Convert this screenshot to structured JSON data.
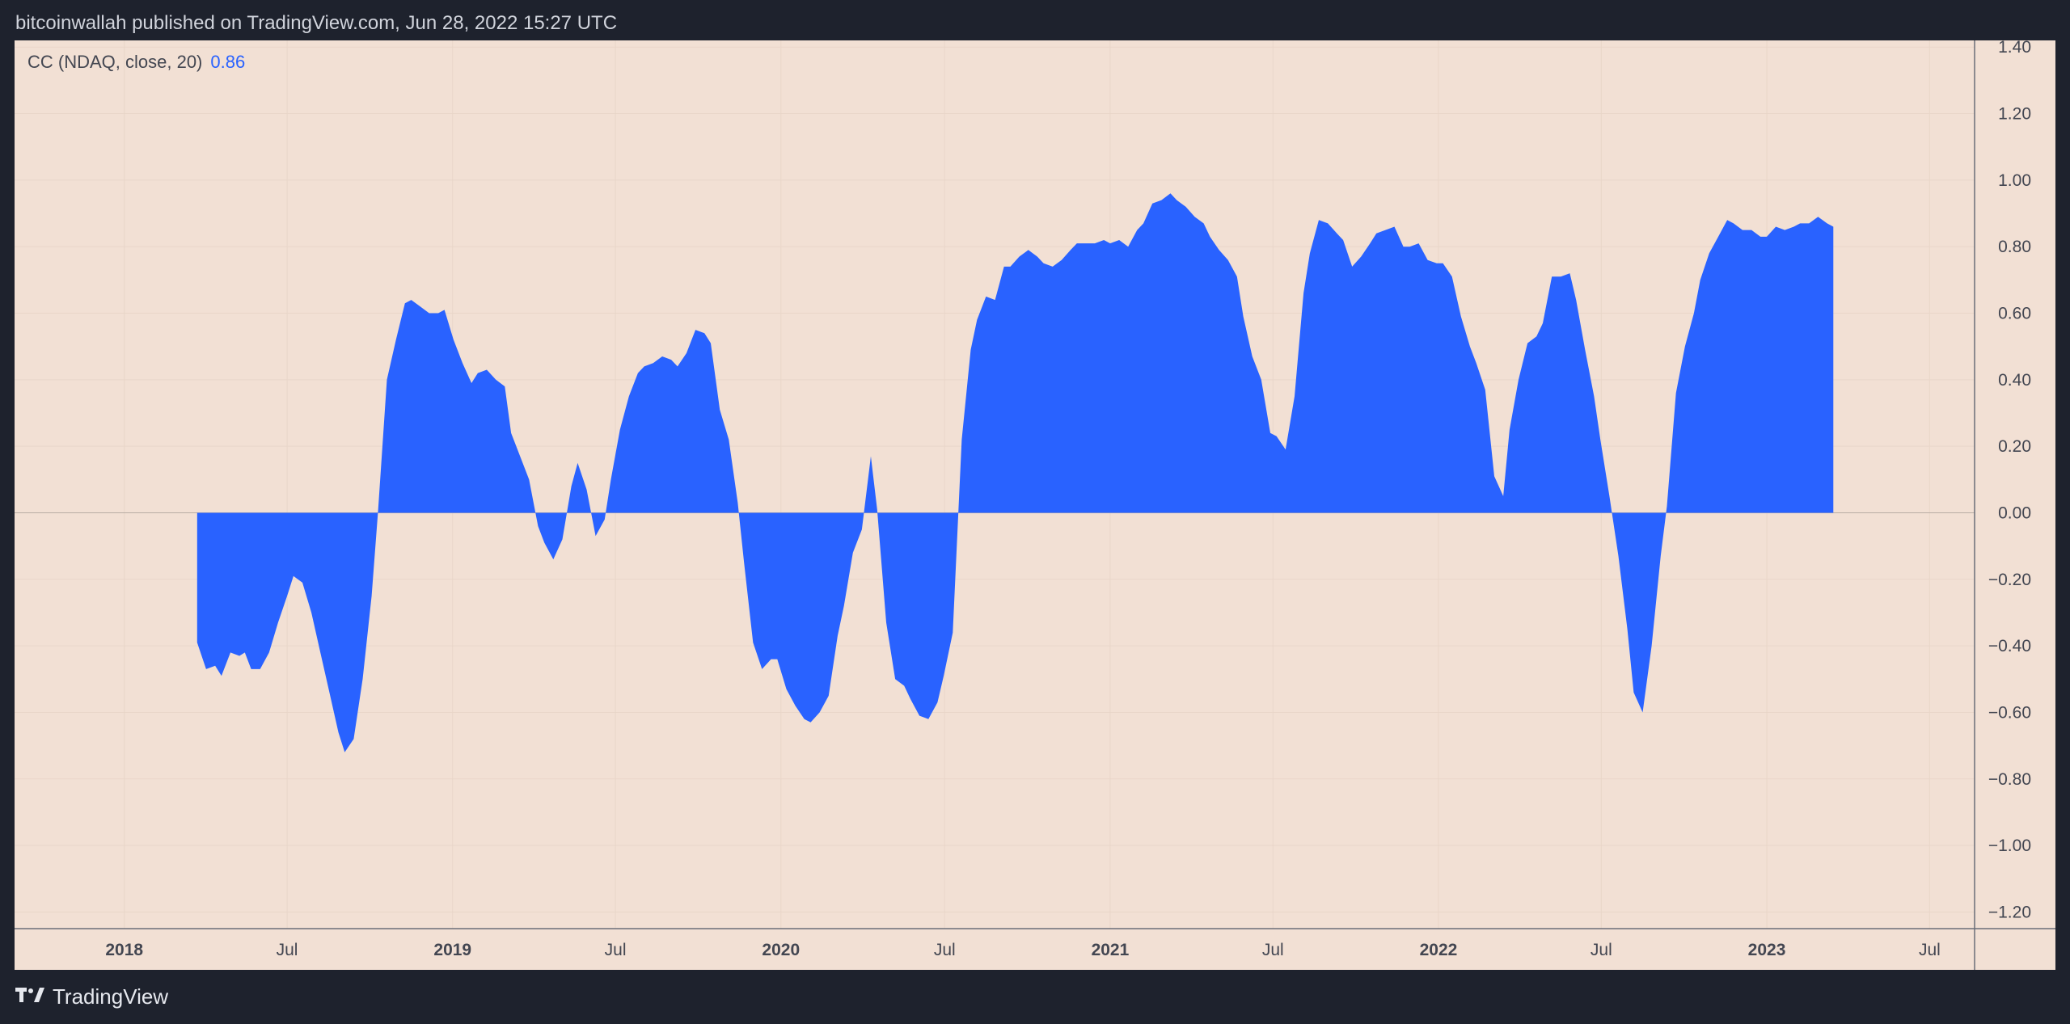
{
  "header": {
    "published": "bitcoinwallah published on TradingView.com, Jun 28, 2022 15:27 UTC"
  },
  "legend": {
    "label": "CC (NDAQ, close, 20)",
    "value": "0.86"
  },
  "footer": {
    "brand": "TradingView",
    "logo_icon": "tradingview-logo-icon"
  },
  "colors": {
    "series": "#2962ff",
    "background": "#f2e0d4",
    "frame": "#1e222d",
    "axis_text": "#434651"
  },
  "chart_data": {
    "type": "area",
    "title": "",
    "xlabel": "",
    "ylabel": "",
    "grid": true,
    "ylim": [
      -1.25,
      1.42
    ],
    "xlim": [
      "2017-09-01",
      "2023-08-20"
    ],
    "y_ticks": [
      "1.40",
      "1.20",
      "1.00",
      "0.80",
      "0.60",
      "0.40",
      "0.20",
      "0.00",
      "−0.20",
      "−0.40",
      "−0.60",
      "−0.80",
      "−1.00",
      "−1.20"
    ],
    "x_ticks": [
      {
        "label": "2018",
        "date": "2018-01-01",
        "bold": true
      },
      {
        "label": "Jul",
        "date": "2018-07-01",
        "bold": false
      },
      {
        "label": "2019",
        "date": "2019-01-01",
        "bold": true
      },
      {
        "label": "Jul",
        "date": "2019-07-01",
        "bold": false
      },
      {
        "label": "2020",
        "date": "2020-01-01",
        "bold": true
      },
      {
        "label": "Jul",
        "date": "2020-07-01",
        "bold": false
      },
      {
        "label": "2021",
        "date": "2021-01-01",
        "bold": true
      },
      {
        "label": "Jul",
        "date": "2021-07-01",
        "bold": false
      },
      {
        "label": "2022",
        "date": "2022-01-01",
        "bold": true
      },
      {
        "label": "Jul",
        "date": "2022-07-01",
        "bold": false
      },
      {
        "label": "2023",
        "date": "2023-01-01",
        "bold": true
      },
      {
        "label": "Jul",
        "date": "2023-07-01",
        "bold": false
      }
    ],
    "series": [
      {
        "points": [
          [
            "2018-03-23",
            -0.39
          ],
          [
            "2018-04-02",
            -0.47
          ],
          [
            "2018-04-12",
            -0.46
          ],
          [
            "2018-04-19",
            -0.49
          ],
          [
            "2018-04-29",
            -0.42
          ],
          [
            "2018-05-09",
            -0.43
          ],
          [
            "2018-05-15",
            -0.42
          ],
          [
            "2018-05-22",
            -0.47
          ],
          [
            "2018-06-01",
            -0.47
          ],
          [
            "2018-06-11",
            -0.42
          ],
          [
            "2018-06-21",
            -0.33
          ],
          [
            "2018-07-01",
            -0.25
          ],
          [
            "2018-07-08",
            -0.19
          ],
          [
            "2018-07-18",
            -0.21
          ],
          [
            "2018-07-28",
            -0.3
          ],
          [
            "2018-08-07",
            -0.42
          ],
          [
            "2018-08-17",
            -0.54
          ],
          [
            "2018-08-27",
            -0.66
          ],
          [
            "2018-09-03",
            -0.72
          ],
          [
            "2018-09-13",
            -0.68
          ],
          [
            "2018-09-23",
            -0.5
          ],
          [
            "2018-10-03",
            -0.25
          ],
          [
            "2018-10-10",
            0.0
          ],
          [
            "2018-10-20",
            0.4
          ],
          [
            "2018-10-30",
            0.52
          ],
          [
            "2018-11-09",
            0.63
          ],
          [
            "2018-11-16",
            0.64
          ],
          [
            "2018-11-26",
            0.62
          ],
          [
            "2018-12-06",
            0.6
          ],
          [
            "2018-12-16",
            0.6
          ],
          [
            "2018-12-23",
            0.61
          ],
          [
            "2019-01-02",
            0.52
          ],
          [
            "2019-01-12",
            0.45
          ],
          [
            "2019-01-22",
            0.39
          ],
          [
            "2019-01-29",
            0.42
          ],
          [
            "2019-02-08",
            0.43
          ],
          [
            "2019-02-18",
            0.4
          ],
          [
            "2019-02-28",
            0.38
          ],
          [
            "2019-03-07",
            0.24
          ],
          [
            "2019-03-17",
            0.17
          ],
          [
            "2019-03-27",
            0.1
          ],
          [
            "2019-04-06",
            -0.04
          ],
          [
            "2019-04-13",
            -0.09
          ],
          [
            "2019-04-23",
            -0.14
          ],
          [
            "2019-05-03",
            -0.08
          ],
          [
            "2019-05-13",
            0.08
          ],
          [
            "2019-05-20",
            0.15
          ],
          [
            "2019-05-30",
            0.07
          ],
          [
            "2019-06-09",
            -0.07
          ],
          [
            "2019-06-19",
            -0.02
          ],
          [
            "2019-06-26",
            0.1
          ],
          [
            "2019-07-06",
            0.25
          ],
          [
            "2019-07-16",
            0.35
          ],
          [
            "2019-07-26",
            0.42
          ],
          [
            "2019-08-02",
            0.44
          ],
          [
            "2019-08-12",
            0.45
          ],
          [
            "2019-08-22",
            0.47
          ],
          [
            "2019-09-01",
            0.46
          ],
          [
            "2019-09-08",
            0.44
          ],
          [
            "2019-09-18",
            0.48
          ],
          [
            "2019-09-28",
            0.55
          ],
          [
            "2019-10-08",
            0.54
          ],
          [
            "2019-10-15",
            0.51
          ],
          [
            "2019-10-25",
            0.31
          ],
          [
            "2019-11-04",
            0.22
          ],
          [
            "2019-11-14",
            0.03
          ],
          [
            "2019-11-21",
            -0.15
          ],
          [
            "2019-12-01",
            -0.39
          ],
          [
            "2019-12-11",
            -0.47
          ],
          [
            "2019-12-21",
            -0.44
          ],
          [
            "2019-12-28",
            -0.44
          ],
          [
            "2020-01-07",
            -0.53
          ],
          [
            "2020-01-17",
            -0.58
          ],
          [
            "2020-01-27",
            -0.62
          ],
          [
            "2020-02-03",
            -0.63
          ],
          [
            "2020-02-13",
            -0.6
          ],
          [
            "2020-02-23",
            -0.55
          ],
          [
            "2020-03-04",
            -0.37
          ],
          [
            "2020-03-11",
            -0.28
          ],
          [
            "2020-03-21",
            -0.12
          ],
          [
            "2020-03-31",
            -0.05
          ],
          [
            "2020-04-10",
            0.17
          ],
          [
            "2020-04-17",
            0.01
          ],
          [
            "2020-04-27",
            -0.33
          ],
          [
            "2020-05-07",
            -0.5
          ],
          [
            "2020-05-17",
            -0.52
          ],
          [
            "2020-05-24",
            -0.56
          ],
          [
            "2020-06-03",
            -0.61
          ],
          [
            "2020-06-13",
            -0.62
          ],
          [
            "2020-06-23",
            -0.57
          ],
          [
            "2020-06-30",
            -0.49
          ],
          [
            "2020-07-10",
            -0.36
          ],
          [
            "2020-07-20",
            0.22
          ],
          [
            "2020-07-30",
            0.49
          ],
          [
            "2020-08-06",
            0.58
          ],
          [
            "2020-08-16",
            0.65
          ],
          [
            "2020-08-26",
            0.64
          ],
          [
            "2020-09-05",
            0.74
          ],
          [
            "2020-09-12",
            0.74
          ],
          [
            "2020-09-22",
            0.77
          ],
          [
            "2020-10-02",
            0.79
          ],
          [
            "2020-10-12",
            0.77
          ],
          [
            "2020-10-19",
            0.75
          ],
          [
            "2020-10-29",
            0.74
          ],
          [
            "2020-11-08",
            0.76
          ],
          [
            "2020-11-18",
            0.79
          ],
          [
            "2020-11-25",
            0.81
          ],
          [
            "2020-12-05",
            0.81
          ],
          [
            "2020-12-15",
            0.81
          ],
          [
            "2020-12-25",
            0.82
          ],
          [
            "2021-01-01",
            0.81
          ],
          [
            "2021-01-11",
            0.82
          ],
          [
            "2021-01-21",
            0.8
          ],
          [
            "2021-01-31",
            0.85
          ],
          [
            "2021-02-07",
            0.87
          ],
          [
            "2021-02-17",
            0.93
          ],
          [
            "2021-02-27",
            0.94
          ],
          [
            "2021-03-09",
            0.96
          ],
          [
            "2021-03-16",
            0.94
          ],
          [
            "2021-03-26",
            0.92
          ],
          [
            "2021-04-05",
            0.89
          ],
          [
            "2021-04-15",
            0.87
          ],
          [
            "2021-04-22",
            0.83
          ],
          [
            "2021-05-02",
            0.79
          ],
          [
            "2021-05-12",
            0.76
          ],
          [
            "2021-05-22",
            0.71
          ],
          [
            "2021-05-29",
            0.59
          ],
          [
            "2021-06-08",
            0.47
          ],
          [
            "2021-06-18",
            0.4
          ],
          [
            "2021-06-28",
            0.24
          ],
          [
            "2021-07-05",
            0.23
          ],
          [
            "2021-07-15",
            0.19
          ],
          [
            "2021-07-25",
            0.35
          ],
          [
            "2021-08-04",
            0.66
          ],
          [
            "2021-08-11",
            0.78
          ],
          [
            "2021-08-21",
            0.88
          ],
          [
            "2021-08-31",
            0.87
          ],
          [
            "2021-09-10",
            0.84
          ],
          [
            "2021-09-17",
            0.82
          ],
          [
            "2021-09-27",
            0.74
          ],
          [
            "2021-10-07",
            0.77
          ],
          [
            "2021-10-17",
            0.81
          ],
          [
            "2021-10-24",
            0.84
          ],
          [
            "2021-11-03",
            0.85
          ],
          [
            "2021-11-13",
            0.86
          ],
          [
            "2021-11-23",
            0.8
          ],
          [
            "2021-11-30",
            0.8
          ],
          [
            "2021-12-10",
            0.81
          ],
          [
            "2021-12-20",
            0.76
          ],
          [
            "2021-12-30",
            0.75
          ],
          [
            "2022-01-06",
            0.75
          ],
          [
            "2022-01-16",
            0.71
          ],
          [
            "2022-01-26",
            0.59
          ],
          [
            "2022-02-05",
            0.5
          ],
          [
            "2022-02-12",
            0.45
          ],
          [
            "2022-02-22",
            0.37
          ],
          [
            "2022-03-04",
            0.11
          ],
          [
            "2022-03-14",
            0.05
          ],
          [
            "2022-03-21",
            0.25
          ],
          [
            "2022-03-31",
            0.4
          ],
          [
            "2022-04-10",
            0.51
          ],
          [
            "2022-04-20",
            0.53
          ],
          [
            "2022-04-27",
            0.57
          ],
          [
            "2022-05-07",
            0.71
          ],
          [
            "2022-05-17",
            0.71
          ],
          [
            "2022-05-27",
            0.72
          ],
          [
            "2022-06-03",
            0.64
          ],
          [
            "2022-06-13",
            0.49
          ],
          [
            "2022-06-23",
            0.35
          ],
          [
            "2022-06-30",
            0.22
          ],
          [
            "2022-07-10",
            0.05
          ],
          [
            "2022-07-20",
            -0.13
          ],
          [
            "2022-07-30",
            -0.35
          ],
          [
            "2022-08-06",
            -0.54
          ],
          [
            "2022-08-16",
            -0.6
          ],
          [
            "2022-08-26",
            -0.4
          ],
          [
            "2022-09-05",
            -0.13
          ],
          [
            "2022-09-12",
            0.02
          ],
          [
            "2022-09-22",
            0.36
          ],
          [
            "2022-10-02",
            0.5
          ],
          [
            "2022-10-12",
            0.6
          ],
          [
            "2022-10-19",
            0.7
          ],
          [
            "2022-10-29",
            0.78
          ],
          [
            "2022-11-08",
            0.83
          ],
          [
            "2022-11-18",
            0.88
          ],
          [
            "2022-11-25",
            0.87
          ],
          [
            "2022-12-05",
            0.85
          ],
          [
            "2022-12-15",
            0.85
          ],
          [
            "2022-12-25",
            0.83
          ],
          [
            "2023-01-01",
            0.83
          ],
          [
            "2023-01-11",
            0.86
          ],
          [
            "2023-01-21",
            0.85
          ],
          [
            "2023-01-31",
            0.86
          ],
          [
            "2023-02-07",
            0.87
          ],
          [
            "2023-02-17",
            0.87
          ],
          [
            "2023-02-27",
            0.89
          ],
          [
            "2023-03-09",
            0.87
          ],
          [
            "2023-03-16",
            0.86
          ]
        ]
      }
    ]
  }
}
